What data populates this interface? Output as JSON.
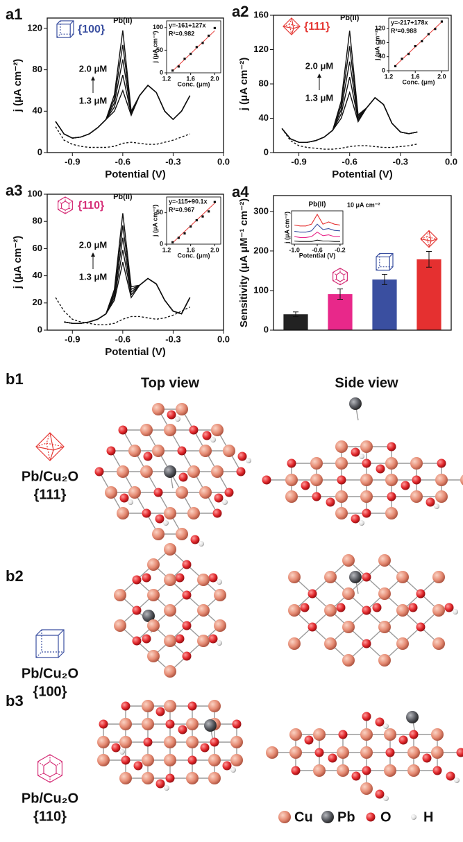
{
  "chart_data": [
    {
      "type": "line",
      "panel": "a1",
      "facet": "{100}",
      "peak_label": "Pb(II)",
      "high_label": "2.0 μM",
      "low_label": "1.3 μM",
      "xlabel": "Potential (V)",
      "ylabel": "j (μA cm⁻²)",
      "xlim": [
        -1.05,
        0
      ],
      "xticks": [
        -0.9,
        -0.6,
        -0.3,
        {
          "value": 0,
          "label": "0.0"
        }
      ],
      "ylim": [
        0,
        130
      ],
      "yticks": [
        0,
        40,
        80,
        120
      ],
      "x": [
        -1.0,
        -0.95,
        -0.9,
        -0.85,
        -0.8,
        -0.75,
        -0.7,
        -0.65,
        -0.6,
        -0.55,
        -0.5,
        -0.45,
        -0.4,
        -0.35,
        -0.3,
        -0.25,
        -0.2
      ],
      "series": [
        {
          "color": "#111111",
          "style": "dashed",
          "values": [
            25,
            12,
            8,
            6,
            5,
            5,
            5,
            6,
            9,
            10,
            9,
            8,
            8,
            10,
            12,
            15,
            18
          ]
        },
        {
          "color": "#111111",
          "style": "solid",
          "values": [
            30,
            18,
            14,
            15,
            18,
            24,
            32,
            40,
            60,
            36,
            55,
            65,
            58,
            40,
            32,
            40,
            55
          ]
        },
        {
          "color": "#111111",
          "style": "solid",
          "values": [
            30,
            18,
            14,
            15,
            18,
            24,
            32,
            44,
            75,
            37,
            55,
            65,
            58,
            40,
            32,
            40,
            55
          ]
        },
        {
          "color": "#111111",
          "style": "solid",
          "values": [
            30,
            18,
            14,
            15,
            18,
            24,
            32,
            48,
            90,
            38,
            55,
            65,
            58,
            40,
            32,
            40,
            55
          ]
        },
        {
          "color": "#111111",
          "style": "solid",
          "values": [
            30,
            18,
            14,
            15,
            18,
            24,
            32,
            52,
            104,
            39,
            55,
            65,
            58,
            40,
            32,
            40,
            55
          ]
        },
        {
          "color": "#111111",
          "style": "solid",
          "values": [
            30,
            18,
            14,
            15,
            18,
            24,
            32,
            56,
            118,
            40,
            55,
            65,
            58,
            40,
            32,
            40,
            55
          ]
        }
      ],
      "inset": {
        "type": "scatter",
        "equation": "y=-161+127x",
        "r2": "R²=0.982",
        "xlabel": "Conc. (μm)",
        "ylabel": "j (μA cm⁻²)",
        "xlim": [
          1.2,
          2.1
        ],
        "xticks": [
          1.2,
          1.6,
          {
            "value": 2,
            "label": "2.0"
          }
        ],
        "ylim": [
          0,
          115
        ],
        "yticks": [
          0,
          50,
          100
        ],
        "x": [
          1.3,
          1.4,
          1.5,
          1.6,
          1.7,
          1.8,
          1.9,
          2.0
        ],
        "values": [
          5,
          14,
          31,
          42,
          57,
          66,
          82,
          99
        ],
        "color": "#111111",
        "fit": {
          "x": [
            1.3,
            2.0
          ],
          "values": [
            4.1,
            93
          ],
          "color": "#e53935"
        }
      }
    },
    {
      "type": "line",
      "panel": "a2",
      "facet": "{111}",
      "peak_label": "Pb(II)",
      "high_label": "2.0 μM",
      "low_label": "1.3 μM",
      "xlabel": "Potential (V)",
      "ylabel": "j (μA cm⁻²)",
      "xlim": [
        -1.05,
        0
      ],
      "xticks": [
        -0.9,
        -0.6,
        -0.3,
        {
          "value": 0,
          "label": "0.0"
        }
      ],
      "ylim": [
        0,
        160
      ],
      "yticks": [
        0,
        40,
        80,
        120,
        160
      ],
      "x": [
        -1.0,
        -0.95,
        -0.9,
        -0.85,
        -0.8,
        -0.75,
        -0.7,
        -0.65,
        -0.6,
        -0.55,
        -0.5,
        -0.45,
        -0.4,
        -0.35,
        -0.3,
        -0.25,
        -0.2
      ],
      "series": [
        {
          "color": "#111111",
          "style": "dashed",
          "values": [
            28,
            14,
            8,
            6,
            5,
            4,
            4,
            5,
            7,
            8,
            8,
            7,
            6,
            6,
            7,
            8,
            10
          ]
        },
        {
          "color": "#111111",
          "style": "solid",
          "values": [
            28,
            16,
            12,
            12,
            14,
            18,
            26,
            40,
            70,
            36,
            52,
            64,
            56,
            34,
            24,
            22,
            24
          ]
        },
        {
          "color": "#111111",
          "style": "solid",
          "values": [
            28,
            16,
            12,
            12,
            14,
            18,
            26,
            45,
            88,
            38,
            52,
            64,
            56,
            34,
            24,
            22,
            24
          ]
        },
        {
          "color": "#111111",
          "style": "solid",
          "values": [
            28,
            16,
            12,
            12,
            14,
            18,
            26,
            50,
            106,
            40,
            52,
            64,
            56,
            34,
            24,
            22,
            24
          ]
        },
        {
          "color": "#111111",
          "style": "solid",
          "values": [
            28,
            16,
            12,
            12,
            14,
            18,
            26,
            55,
            124,
            42,
            52,
            64,
            56,
            34,
            24,
            22,
            24
          ]
        },
        {
          "color": "#111111",
          "style": "solid",
          "values": [
            28,
            16,
            12,
            12,
            14,
            18,
            26,
            60,
            142,
            44,
            52,
            64,
            56,
            34,
            24,
            22,
            24
          ]
        }
      ],
      "inset": {
        "type": "scatter",
        "equation": "y=-217+178x",
        "r2": "R²=0.988",
        "xlabel": "Conc. (μm)",
        "ylabel": "j (μA cm⁻²)",
        "xlim": [
          1.2,
          2.1
        ],
        "xticks": [
          1.2,
          1.6,
          {
            "value": 2,
            "label": "2.0"
          }
        ],
        "ylim": [
          0,
          150
        ],
        "yticks": [
          0,
          40,
          80,
          120
        ],
        "x": [
          1.3,
          1.4,
          1.5,
          1.6,
          1.7,
          1.8,
          1.9,
          2.0
        ],
        "values": [
          13,
          34,
          48,
          70,
          84,
          104,
          119,
          140
        ],
        "color": "#111111",
        "fit": {
          "x": [
            1.3,
            2.0
          ],
          "values": [
            14.4,
            139
          ],
          "color": "#e53935"
        }
      }
    },
    {
      "type": "line",
      "panel": "a3",
      "facet": "{110}",
      "peak_label": "Pb(II)",
      "high_label": "2.0 μM",
      "low_label": "1.3 μM",
      "xlabel": "Potential (V)",
      "ylabel": "j (μA cm⁻²)",
      "xlim": [
        -1.05,
        0
      ],
      "xticks": [
        -0.9,
        -0.6,
        -0.3,
        {
          "value": 0,
          "label": "0.0"
        }
      ],
      "ylim": [
        0,
        100
      ],
      "yticks": [
        0,
        20,
        40,
        60,
        80,
        100
      ],
      "x": [
        -1.0,
        -0.95,
        -0.9,
        -0.85,
        -0.8,
        -0.75,
        -0.7,
        -0.65,
        -0.6,
        -0.55,
        -0.5,
        -0.45,
        -0.4,
        -0.35,
        -0.3,
        -0.25,
        -0.2
      ],
      "series": [
        {
          "color": "#111111",
          "style": "dashed",
          "values": [
            24,
            14,
            8,
            6,
            5,
            4,
            4,
            5,
            8,
            10,
            10,
            9,
            8,
            9,
            11,
            14,
            17
          ]
        },
        {
          "color": "#111111",
          "style": "solid",
          "values": [
            null,
            6,
            5,
            5,
            6,
            8,
            12,
            22,
            50,
            24,
            33,
            38,
            34,
            22,
            14,
            12,
            24
          ]
        },
        {
          "color": "#111111",
          "style": "solid",
          "values": [
            null,
            6,
            5,
            5,
            6,
            8,
            12,
            24,
            59,
            26,
            33,
            38,
            34,
            22,
            14,
            12,
            24
          ]
        },
        {
          "color": "#111111",
          "style": "solid",
          "values": [
            null,
            6,
            5,
            5,
            6,
            8,
            12,
            26,
            68,
            28,
            33,
            38,
            34,
            22,
            14,
            12,
            24
          ]
        },
        {
          "color": "#111111",
          "style": "solid",
          "values": [
            null,
            6,
            5,
            5,
            6,
            8,
            12,
            28,
            77,
            30,
            33,
            38,
            34,
            22,
            14,
            12,
            24
          ]
        },
        {
          "color": "#111111",
          "style": "solid",
          "values": [
            null,
            6,
            5,
            5,
            6,
            8,
            12,
            30,
            86,
            32,
            33,
            38,
            34,
            22,
            14,
            12,
            24
          ]
        }
      ],
      "inset": {
        "type": "scatter",
        "equation": "y=-115+90.1x",
        "r2": "R²=0.967",
        "xlabel": "Conc. (μm)",
        "ylabel": "j (μA cm⁻²)",
        "xlim": [
          1.2,
          2.1
        ],
        "xticks": [
          1.2,
          1.6,
          {
            "value": 2,
            "label": "2.0"
          }
        ],
        "ylim": [
          0,
          75
        ],
        "yticks": [
          0,
          50
        ],
        "x": [
          1.3,
          1.4,
          1.5,
          1.6,
          1.7,
          1.8,
          1.9,
          2.0
        ],
        "values": [
          3,
          10,
          17,
          28,
          38,
          44,
          52,
          67
        ],
        "color": "#111111",
        "fit": {
          "x": [
            1.3,
            2.0
          ],
          "values": [
            2.1,
            65.2
          ],
          "color": "#e53935"
        }
      }
    },
    {
      "type": "bar",
      "panel": "a4",
      "ylabel": "Sensitivity (μA μM⁻¹ cm⁻²)",
      "categories": [
        null,
        null,
        null,
        null
      ],
      "values": [
        40,
        91,
        128,
        179
      ],
      "errors": [
        6,
        13,
        13,
        20
      ],
      "colors": [
        "#222222",
        "#e8288a",
        "#3a4fa0",
        "#e53030"
      ],
      "ylim": [
        0,
        340
      ],
      "yticks": [
        0,
        100,
        200,
        300
      ],
      "inset": {
        "type": "line",
        "peak_label": "Pb(II)",
        "scale_label": "10 μA cm⁻²",
        "xlabel": "Potential (V)",
        "ylabel": "j (μA cm⁻²)",
        "xlim": [
          -1.05,
          -0.15
        ],
        "xticks": [
          {
            "value": -1,
            "label": "-1.0"
          },
          -0.6,
          -0.2
        ],
        "ylim": [
          -5,
          70
        ],
        "x": [
          -1.0,
          -0.9,
          -0.8,
          -0.7,
          -0.6,
          -0.5,
          -0.4,
          -0.3,
          -0.2
        ],
        "series": [
          {
            "color": "#111111",
            "style": "solid",
            "values": [
              2,
              1,
              1,
              1,
              4,
              2,
              2,
              1,
              1
            ]
          },
          {
            "color": "#e8288a",
            "style": "solid",
            "values": [
              12,
              10,
              10,
              12,
              22,
              14,
              16,
              12,
              12
            ]
          },
          {
            "color": "#3a4fa0",
            "style": "solid",
            "values": [
              24,
              22,
              22,
              25,
              40,
              28,
              30,
              26,
              25
            ]
          },
          {
            "color": "#e53030",
            "style": "solid",
            "values": [
              38,
              36,
              36,
              40,
              62,
              40,
              45,
              40,
              38
            ]
          }
        ]
      }
    }
  ],
  "structures": {
    "headers": [
      "Top view",
      "Side view"
    ],
    "rows": [
      {
        "label": "b1",
        "material": "Pb/Cu₂O",
        "facet": "{111}"
      },
      {
        "label": "b2",
        "material": "Pb/Cu₂O",
        "facet": "{100}"
      },
      {
        "label": "b3",
        "material": "Pb/Cu₂O",
        "facet": "{110}"
      }
    ],
    "legend": [
      "Cu",
      "Pb",
      "O",
      "H"
    ]
  }
}
